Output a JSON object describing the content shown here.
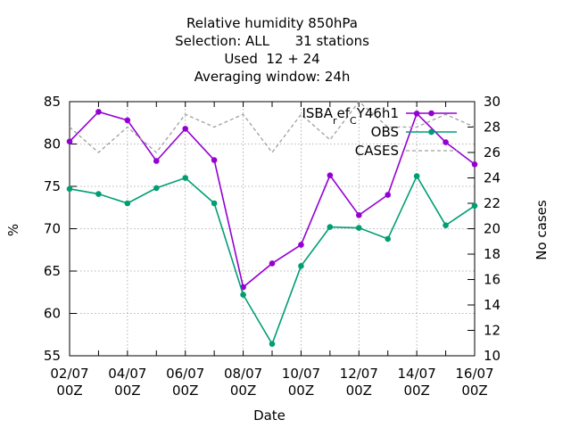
{
  "chart_data": {
    "type": "line",
    "title_lines": [
      "Relative humidity 850hPa",
      "Selection: ALL      31 stations",
      "Used  12 + 24",
      "Averaging window: 24h"
    ],
    "xlabel": "Date",
    "ylabel": "%",
    "y2label": "No cases",
    "ylim": [
      55,
      85
    ],
    "y2lim": [
      10,
      30
    ],
    "yticks": [
      55,
      60,
      65,
      70,
      75,
      80,
      85
    ],
    "y2ticks": [
      10,
      12,
      14,
      16,
      18,
      20,
      22,
      24,
      26,
      28,
      30
    ],
    "x": [
      "02/07 00Z",
      "03/07 00Z",
      "04/07 00Z",
      "05/07 00Z",
      "06/07 00Z",
      "07/07 00Z",
      "08/07 00Z",
      "09/07 00Z",
      "10/07 00Z",
      "11/07 00Z",
      "12/07 00Z",
      "13/07 00Z",
      "14/07 00Z",
      "15/07 00Z",
      "16/07 00Z"
    ],
    "xtick_labels": [
      {
        "index": 0,
        "line1": "02/07",
        "line2": "00Z"
      },
      {
        "index": 2,
        "line1": "04/07",
        "line2": "00Z"
      },
      {
        "index": 4,
        "line1": "06/07",
        "line2": "00Z"
      },
      {
        "index": 6,
        "line1": "08/07",
        "line2": "00Z"
      },
      {
        "index": 8,
        "line1": "10/07",
        "line2": "00Z"
      },
      {
        "index": 10,
        "line1": "12/07",
        "line2": "00Z"
      },
      {
        "index": 12,
        "line1": "14/07",
        "line2": "00Z"
      },
      {
        "index": 14,
        "line1": "16/07",
        "line2": "00Z"
      }
    ],
    "grid": true,
    "legend_position": "top-right",
    "series": [
      {
        "name": "ISBA_ref_CY46h1",
        "legend_main": "ISBA",
        "legend_sub1": "r",
        "legend_mid": "ef",
        "legend_sub2": "C",
        "legend_tail": "Y46h1",
        "axis": "y",
        "color": "#9400d3",
        "style": "solid",
        "marker": true,
        "values": [
          80.3,
          83.8,
          82.8,
          78.0,
          81.8,
          78.1,
          63.1,
          65.9,
          68.1,
          76.3,
          71.6,
          74.0,
          83.6,
          80.2,
          77.6
        ]
      },
      {
        "name": "OBS",
        "axis": "y",
        "color": "#009e73",
        "style": "solid",
        "marker": true,
        "values": [
          74.7,
          74.1,
          73.0,
          74.8,
          76.0,
          73.0,
          62.2,
          56.4,
          65.6,
          70.2,
          70.1,
          68.8,
          76.2,
          70.4,
          72.7
        ]
      },
      {
        "name": "CASES",
        "axis": "y2",
        "color": "#a0a0a0",
        "style": "dashed",
        "marker": false,
        "values": [
          28,
          26,
          28,
          26,
          29,
          28,
          29,
          26,
          29,
          27,
          30,
          28,
          28,
          29,
          28
        ]
      }
    ]
  }
}
